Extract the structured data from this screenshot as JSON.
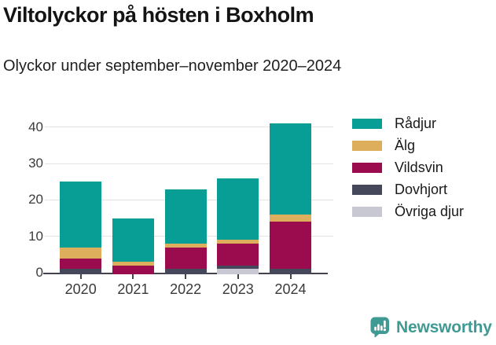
{
  "header": {
    "title": "Viltolyckor på hösten i Boxholm",
    "subtitle": "Olyckor under september–november 2020–2024"
  },
  "chart_data": {
    "type": "bar",
    "stacked": true,
    "title": "Viltolyckor på hösten i Boxholm",
    "subtitle": "Olyckor under september–november 2020–2024",
    "categories": [
      "2020",
      "2021",
      "2022",
      "2023",
      "2024"
    ],
    "series": [
      {
        "name": "Rådjur",
        "color": "#089e96",
        "values": [
          18,
          12,
          15,
          17,
          25
        ]
      },
      {
        "name": "Älg",
        "color": "#ddae5b",
        "values": [
          3,
          1,
          1,
          1,
          2
        ]
      },
      {
        "name": "Vildsvin",
        "color": "#9a0c4e",
        "values": [
          3,
          2,
          6,
          6,
          13
        ]
      },
      {
        "name": "Dovhjort",
        "color": "#45475a",
        "values": [
          1,
          0,
          1,
          1,
          1
        ]
      },
      {
        "name": "Övriga djur",
        "color": "#c8c8d3",
        "values": [
          0,
          0,
          0,
          1,
          0
        ]
      }
    ],
    "totals": [
      25,
      15,
      23,
      26,
      41
    ],
    "y_ticks": [
      0,
      10,
      20,
      30,
      40
    ],
    "ylim": [
      0,
      42
    ],
    "xlabel": "",
    "ylabel": "",
    "grid": true,
    "legend_position": "right",
    "colors": {
      "gridline": "#e3e3e3",
      "axis": "#42434f",
      "tick_label": "#3a3a3a"
    }
  },
  "footer": {
    "brand": "Newsworthy",
    "brand_color": "#3f9a93"
  }
}
